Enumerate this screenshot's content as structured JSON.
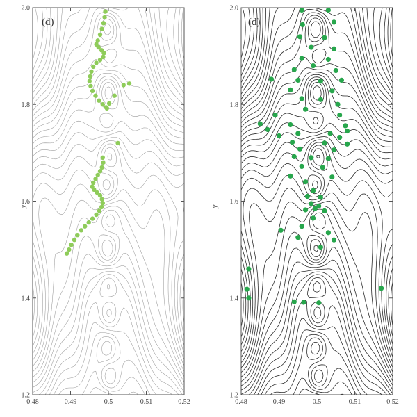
{
  "chart_data": [
    {
      "type": "scatter",
      "panel_label": "(d)",
      "xlabel": "",
      "ylabel": "y",
      "xlim": [
        0.48,
        0.52
      ],
      "ylim": [
        1.2,
        2.0
      ],
      "xticks": [
        "0.48",
        "0.49",
        "0.5",
        "0.51",
        "0.52"
      ],
      "yticks": [
        "1.2",
        "1.4",
        "1.6",
        "1.8",
        "2.0"
      ],
      "background": "contour",
      "contour_color": "#9a9a9a",
      "point_color": "#8fcc5a",
      "grid": false,
      "series": [
        {
          "points": [
            [
              0.4992,
              1.992
            ],
            [
              0.499,
              1.98
            ],
            [
              0.4987,
              1.968
            ],
            [
              0.4983,
              1.956
            ],
            [
              0.4978,
              1.944
            ],
            [
              0.4972,
              1.932
            ],
            [
              0.4968,
              1.924
            ],
            [
              0.4974,
              1.918
            ],
            [
              0.4982,
              1.912
            ],
            [
              0.4988,
              1.906
            ],
            [
              0.4986,
              1.898
            ],
            [
              0.4978,
              1.892
            ],
            [
              0.4968,
              1.886
            ],
            [
              0.496,
              1.878
            ],
            [
              0.4955,
              1.868
            ],
            [
              0.4952,
              1.858
            ],
            [
              0.495,
              1.848
            ],
            [
              0.4953,
              1.838
            ],
            [
              0.4958,
              1.828
            ],
            [
              0.4966,
              1.818
            ],
            [
              0.4975,
              1.808
            ],
            [
              0.4985,
              1.8
            ],
            [
              0.4994,
              1.794
            ],
            [
              0.5002,
              1.802
            ],
            [
              0.5016,
              1.818
            ],
            [
              0.504,
              1.84
            ],
            [
              0.5055,
              1.843
            ],
            [
              0.4996,
              1.792
            ],
            [
              0.5025,
              1.72
            ],
            [
              0.4985,
              1.69
            ],
            [
              0.4986,
              1.68
            ],
            [
              0.4983,
              1.67
            ],
            [
              0.4978,
              1.662
            ],
            [
              0.4972,
              1.654
            ],
            [
              0.4966,
              1.646
            ],
            [
              0.496,
              1.638
            ],
            [
              0.4957,
              1.63
            ],
            [
              0.4962,
              1.624
            ],
            [
              0.497,
              1.618
            ],
            [
              0.4978,
              1.612
            ],
            [
              0.4983,
              1.604
            ],
            [
              0.4985,
              1.596
            ],
            [
              0.4982,
              1.588
            ],
            [
              0.4976,
              1.58
            ],
            [
              0.4968,
              1.572
            ],
            [
              0.4958,
              1.564
            ],
            [
              0.4948,
              1.556
            ],
            [
              0.4938,
              1.548
            ],
            [
              0.4928,
              1.54
            ],
            [
              0.4918,
              1.53
            ],
            [
              0.491,
              1.52
            ],
            [
              0.4902,
              1.51
            ],
            [
              0.4896,
              1.5
            ],
            [
              0.489,
              1.492
            ]
          ]
        }
      ]
    },
    {
      "type": "scatter",
      "panel_label": "(d)",
      "xlabel": "",
      "ylabel": "y",
      "xlim": [
        0.48,
        0.52
      ],
      "ylim": [
        1.2,
        2.0
      ],
      "xticks": [
        "0.48",
        "0.49",
        "0.5",
        "0.51",
        "0.52"
      ],
      "yticks": [
        "1.2",
        "1.4",
        "1.6",
        "1.8",
        "2.0"
      ],
      "background": "contour",
      "contour_color": "#2a2a2a",
      "point_color": "#27a64c",
      "grid": false,
      "series": [
        {
          "points": [
            [
              0.496,
              1.995
            ],
            [
              0.503,
              1.995
            ],
            [
              0.5045,
              1.97
            ],
            [
              0.4962,
              1.965
            ],
            [
              0.4955,
              1.94
            ],
            [
              0.502,
              1.938
            ],
            [
              0.4985,
              1.918
            ],
            [
              0.5045,
              1.915
            ],
            [
              0.496,
              1.895
            ],
            [
              0.503,
              1.893
            ],
            [
              0.499,
              1.88
            ],
            [
              0.494,
              1.872
            ],
            [
              0.505,
              1.87
            ],
            [
              0.488,
              1.852
            ],
            [
              0.495,
              1.85
            ],
            [
              0.501,
              1.848
            ],
            [
              0.5065,
              1.85
            ],
            [
              0.493,
              1.83
            ],
            [
              0.504,
              1.828
            ],
            [
              0.496,
              1.812
            ],
            [
              0.501,
              1.81
            ],
            [
              0.5055,
              1.8
            ],
            [
              0.497,
              1.79
            ],
            [
              0.489,
              1.778
            ],
            [
              0.506,
              1.778
            ],
            [
              0.485,
              1.76
            ],
            [
              0.493,
              1.758
            ],
            [
              0.5075,
              1.756
            ],
            [
              0.487,
              1.748
            ],
            [
              0.508,
              1.745
            ],
            [
              0.495,
              1.74
            ],
            [
              0.5035,
              1.74
            ],
            [
              0.49,
              1.735
            ],
            [
              0.506,
              1.732
            ],
            [
              0.4935,
              1.722
            ],
            [
              0.502,
              1.72
            ],
            [
              0.508,
              1.718
            ],
            [
              0.4955,
              1.708
            ],
            [
              0.5045,
              1.706
            ],
            [
              0.494,
              1.692
            ],
            [
              0.4985,
              1.69
            ],
            [
              0.503,
              1.688
            ],
            [
              0.496,
              1.672
            ],
            [
              0.5015,
              1.67
            ],
            [
              0.493,
              1.652
            ],
            [
              0.504,
              1.65
            ],
            [
              0.497,
              1.64
            ],
            [
              0.499,
              1.622
            ],
            [
              0.4975,
              1.61
            ],
            [
              0.501,
              1.608
            ],
            [
              0.4985,
              1.595
            ],
            [
              0.5005,
              1.59
            ],
            [
              0.4995,
              1.585
            ],
            [
              0.497,
              1.582
            ],
            [
              0.502,
              1.58
            ],
            [
              0.499,
              1.565
            ],
            [
              0.496,
              1.548
            ],
            [
              0.4905,
              1.54
            ],
            [
              0.503,
              1.535
            ],
            [
              0.495,
              1.525
            ],
            [
              0.5045,
              1.52
            ],
            [
              0.501,
              1.505
            ],
            [
              0.482,
              1.46
            ],
            [
              0.517,
              1.42
            ],
            [
              0.4815,
              1.418
            ],
            [
              0.482,
              1.4
            ],
            [
              0.494,
              1.392
            ],
            [
              0.4965,
              1.391
            ],
            [
              0.5005,
              1.39
            ]
          ]
        }
      ]
    }
  ]
}
